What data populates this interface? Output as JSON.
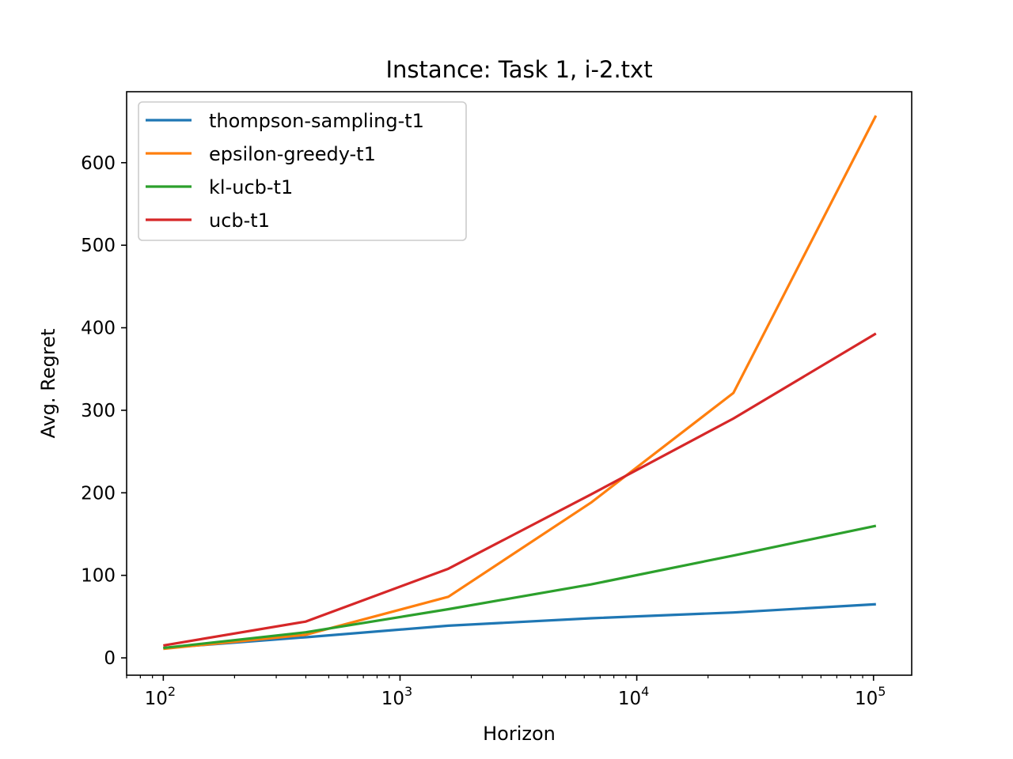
{
  "chart_data": {
    "type": "line",
    "title": "Instance: Task 1, i-2.txt",
    "xlabel": "Horizon",
    "ylabel": "Avg. Regret",
    "xscale": "log",
    "x": [
      100,
      400,
      1600,
      6400,
      25600,
      102400
    ],
    "xlim": [
      70,
      145000
    ],
    "ylim": [
      -21,
      686
    ],
    "x_ticks": [
      {
        "base": "10",
        "exp": "2",
        "value": 100
      },
      {
        "base": "10",
        "exp": "3",
        "value": 1000
      },
      {
        "base": "10",
        "exp": "4",
        "value": 10000
      },
      {
        "base": "10",
        "exp": "5",
        "value": 100000
      }
    ],
    "y_ticks": [
      0,
      100,
      200,
      300,
      400,
      500,
      600
    ],
    "grid": false,
    "legend_position": "upper-left",
    "series": [
      {
        "name": "thompson-sampling-t1",
        "color": "#1f77b4",
        "values": [
          12,
          25,
          39,
          48,
          55,
          65
        ]
      },
      {
        "name": "epsilon-greedy-t1",
        "color": "#ff7f0e",
        "values": [
          11,
          28,
          74,
          188,
          321,
          657
        ]
      },
      {
        "name": "kl-ucb-t1",
        "color": "#2ca02c",
        "values": [
          12,
          31,
          59,
          89,
          124,
          160
        ]
      },
      {
        "name": "ucb-t1",
        "color": "#d62728",
        "values": [
          15,
          44,
          108,
          198,
          290,
          393
        ]
      }
    ]
  }
}
